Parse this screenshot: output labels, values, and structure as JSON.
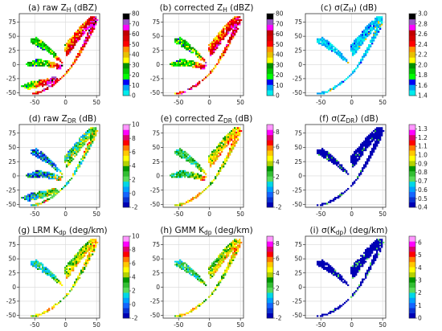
{
  "chart_data": [
    {
      "type": "heatmap",
      "title": "(a) raw Z",
      "title_sub": "H",
      "title_unit": " (dBZ)",
      "x_ticks": [
        -50,
        0,
        50
      ],
      "y_ticks": [
        -50,
        -25,
        0,
        25,
        50,
        75
      ],
      "xlim": [
        -75,
        55
      ],
      "ylim": [
        -55,
        90
      ],
      "colorbar": {
        "ticks": [
          0,
          10,
          20,
          30,
          40,
          50,
          60,
          70,
          80
        ],
        "range": [
          0,
          80
        ],
        "palette": "nws"
      },
      "shape": "raw_z"
    },
    {
      "type": "heatmap",
      "title": "(b) corrected Z",
      "title_sub": "H",
      "title_unit": " (dBZ)",
      "x_ticks": [
        -50,
        0,
        50
      ],
      "y_ticks": [
        -50,
        -25,
        0,
        25,
        50,
        75
      ],
      "xlim": [
        -75,
        55
      ],
      "ylim": [
        -55,
        90
      ],
      "colorbar": {
        "ticks": [
          0,
          10,
          20,
          30,
          40,
          50,
          60,
          70,
          80
        ],
        "range": [
          0,
          80
        ],
        "palette": "nws"
      },
      "shape": "corr_z"
    },
    {
      "type": "heatmap",
      "title": "(c) σ(Z",
      "title_sub": "H",
      "title_unit": ") (dB)",
      "x_ticks": [
        -50,
        0,
        50
      ],
      "y_ticks": [
        -50,
        -25,
        0,
        25,
        50,
        75
      ],
      "xlim": [
        -75,
        55
      ],
      "ylim": [
        -55,
        90
      ],
      "colorbar": {
        "ticks": [
          1.4,
          1.6,
          1.8,
          2.0,
          2.2,
          2.4,
          2.6,
          2.8,
          3.0
        ],
        "range": [
          1.4,
          3.0
        ],
        "palette": "nws"
      },
      "shape": "sigma_z"
    },
    {
      "type": "heatmap",
      "title": "(d) raw Z",
      "title_sub": "DR",
      "title_unit": " (dB)",
      "x_ticks": [
        -50,
        0,
        50
      ],
      "y_ticks": [
        -50,
        -25,
        0,
        25,
        50,
        75
      ],
      "xlim": [
        -75,
        55
      ],
      "ylim": [
        -55,
        90
      ],
      "colorbar": {
        "ticks": [
          -2,
          0,
          2,
          4,
          6,
          8,
          10
        ],
        "range": [
          -2,
          10
        ],
        "palette": "zdr"
      },
      "shape": "raw_zdr"
    },
    {
      "type": "heatmap",
      "title": "(e) corrected Z",
      "title_sub": "DR",
      "title_unit": " (dB)",
      "x_ticks": [
        -50,
        0,
        50
      ],
      "y_ticks": [
        -50,
        -25,
        0,
        25,
        50,
        75
      ],
      "xlim": [
        -75,
        55
      ],
      "ylim": [
        -55,
        90
      ],
      "colorbar": {
        "ticks": [
          -2,
          0,
          2,
          4,
          6,
          8
        ],
        "range": [
          -2,
          9
        ],
        "palette": "zdr"
      },
      "shape": "corr_zdr"
    },
    {
      "type": "heatmap",
      "title": "(f) σ(Z",
      "title_sub": "DR",
      "title_unit": ") (dB)",
      "x_ticks": [
        -50,
        0,
        50
      ],
      "y_ticks": [
        -50,
        -25,
        0,
        25,
        50,
        75
      ],
      "xlim": [
        -75,
        55
      ],
      "ylim": [
        -55,
        90
      ],
      "colorbar": {
        "ticks": [
          0.4,
          0.5,
          0.6,
          0.7,
          0.8,
          0.9,
          1.0,
          1.1,
          1.2,
          1.3
        ],
        "range": [
          0.4,
          1.35
        ],
        "palette": "zdr"
      },
      "shape": "sigma_zdr"
    },
    {
      "type": "heatmap",
      "title": "(g) LRM K",
      "title_sub": "dp",
      "title_unit": " (deg/km)",
      "x_ticks": [
        -50,
        0,
        50
      ],
      "y_ticks": [
        -50,
        -25,
        0,
        25,
        50,
        75
      ],
      "xlim": [
        -75,
        55
      ],
      "ylim": [
        -55,
        90
      ],
      "colorbar": {
        "ticks": [
          -2,
          0,
          2,
          4,
          6,
          8,
          10
        ],
        "range": [
          -2,
          10
        ],
        "palette": "zdr"
      },
      "shape": "lrm"
    },
    {
      "type": "heatmap",
      "title": "(h) GMM K",
      "title_sub": "dp",
      "title_unit": " (deg/km)",
      "x_ticks": [
        -50,
        0,
        50
      ],
      "y_ticks": [
        -50,
        -25,
        0,
        25,
        50,
        75
      ],
      "xlim": [
        -75,
        55
      ],
      "ylim": [
        -55,
        90
      ],
      "colorbar": {
        "ticks": [
          -2,
          0,
          2,
          4,
          6,
          8
        ],
        "range": [
          -2,
          9
        ],
        "palette": "zdr"
      },
      "shape": "gmm"
    },
    {
      "type": "heatmap",
      "title": "(i) σ(K",
      "title_sub": "dp",
      "title_unit": ") (deg/km)",
      "x_ticks": [
        -50,
        0,
        50
      ],
      "y_ticks": [
        -50,
        -25,
        0,
        25,
        50,
        75
      ],
      "xlim": [
        -75,
        55
      ],
      "ylim": [
        -55,
        90
      ],
      "colorbar": {
        "ticks": [
          0,
          1,
          2,
          3,
          4,
          5,
          6
        ],
        "range": [
          0,
          6.5
        ],
        "palette": "zdr"
      },
      "shape": "sigma_kdp"
    }
  ]
}
